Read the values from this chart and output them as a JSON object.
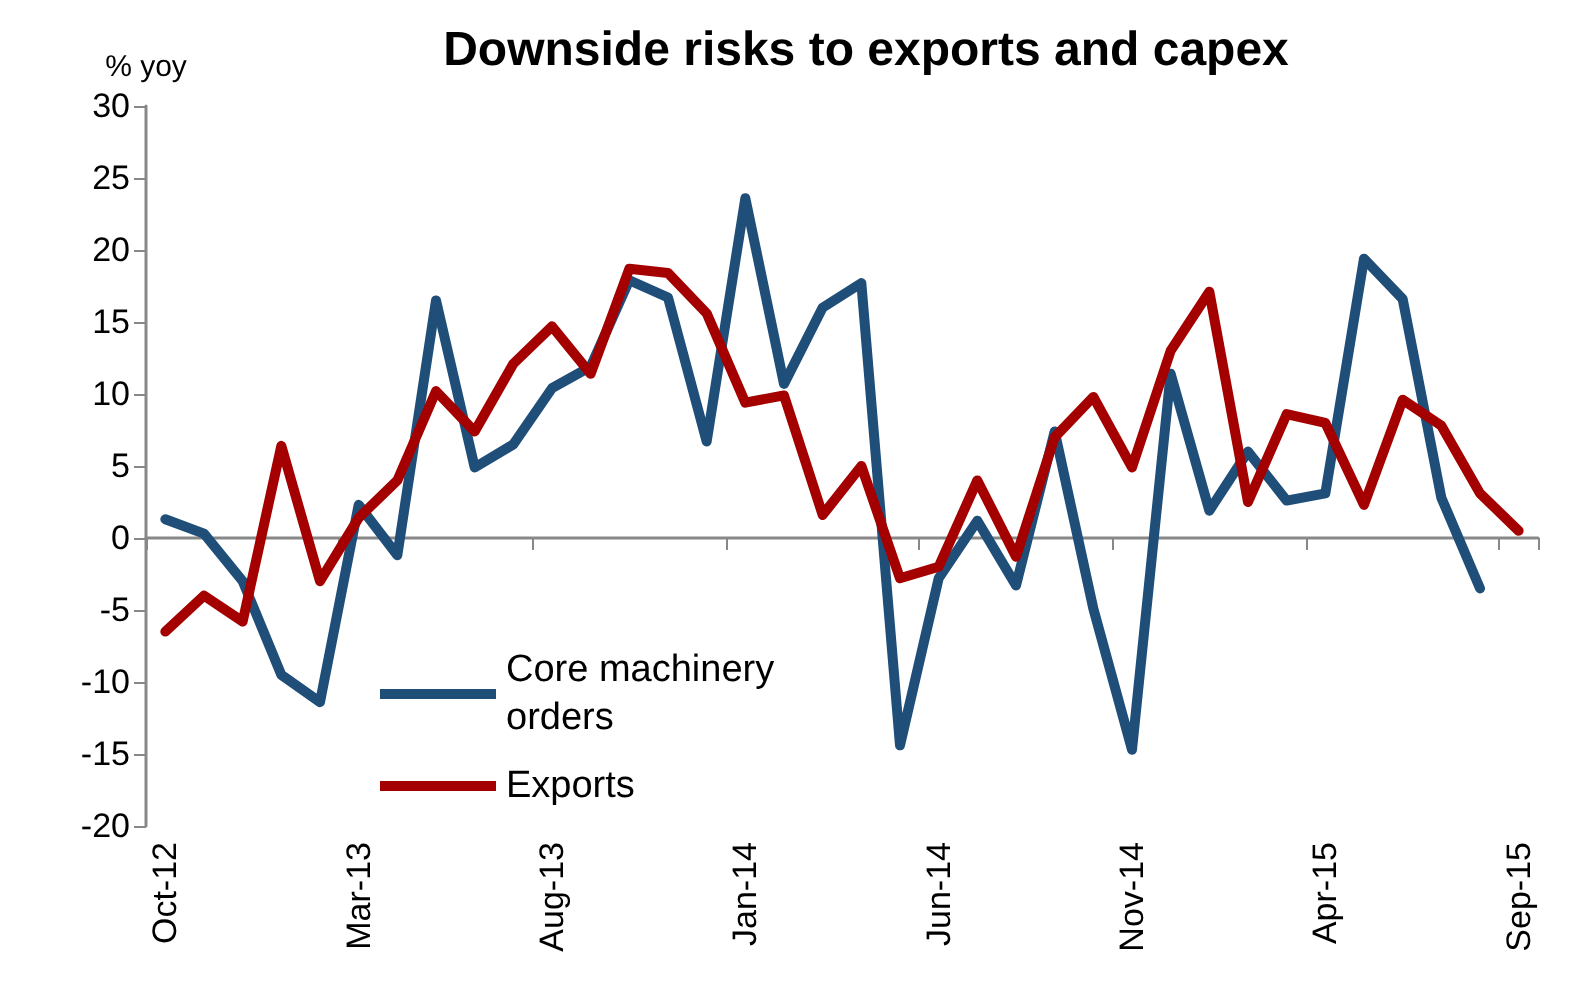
{
  "chart_data": {
    "type": "line",
    "title": "Downside risks to exports and capex",
    "ylabel": "% yoy",
    "categories": [
      "Oct-12",
      null,
      null,
      null,
      null,
      "Mar-13",
      null,
      null,
      null,
      null,
      "Aug-13",
      null,
      null,
      null,
      null,
      "Jan-14",
      null,
      null,
      null,
      null,
      "Jun-14",
      null,
      null,
      null,
      null,
      "Nov-14",
      null,
      null,
      null,
      null,
      "Apr-15",
      null,
      null,
      null,
      null,
      "Sep-15"
    ],
    "series": [
      {
        "name": "Core machinery orders",
        "color": "#1f4e79",
        "values": [
          1.3,
          0.3,
          -3.0,
          -9.5,
          -11.4,
          2.3,
          -1.2,
          16.5,
          4.9,
          6.5,
          10.4,
          11.9,
          17.9,
          16.7,
          6.7,
          23.6,
          10.7,
          16.0,
          17.7,
          -14.4,
          -2.8,
          1.2,
          -3.3,
          7.4,
          -4.9,
          -14.7,
          11.4,
          1.9,
          6.0,
          2.6,
          3.1,
          19.4,
          16.6,
          2.8,
          -3.5,
          null
        ]
      },
      {
        "name": "Exports",
        "color": "#a50000",
        "values": [
          -6.5,
          -4.0,
          -5.8,
          6.4,
          -3.0,
          1.4,
          4.0,
          10.2,
          7.4,
          12.1,
          14.7,
          11.4,
          18.7,
          18.4,
          15.6,
          9.4,
          9.9,
          1.6,
          5.0,
          -2.8,
          -2.0,
          4.0,
          -1.3,
          7.0,
          9.8,
          4.9,
          13.0,
          17.1,
          2.5,
          8.6,
          8.0,
          2.3,
          9.6,
          7.8,
          3.1,
          0.5
        ]
      }
    ],
    "ylim": [
      -20,
      30
    ],
    "yticks": [
      -20,
      -15,
      -10,
      -5,
      0,
      5,
      10,
      15,
      20,
      25,
      30
    ],
    "legend": "bottom left",
    "marker": "none",
    "line_style": "solid"
  }
}
